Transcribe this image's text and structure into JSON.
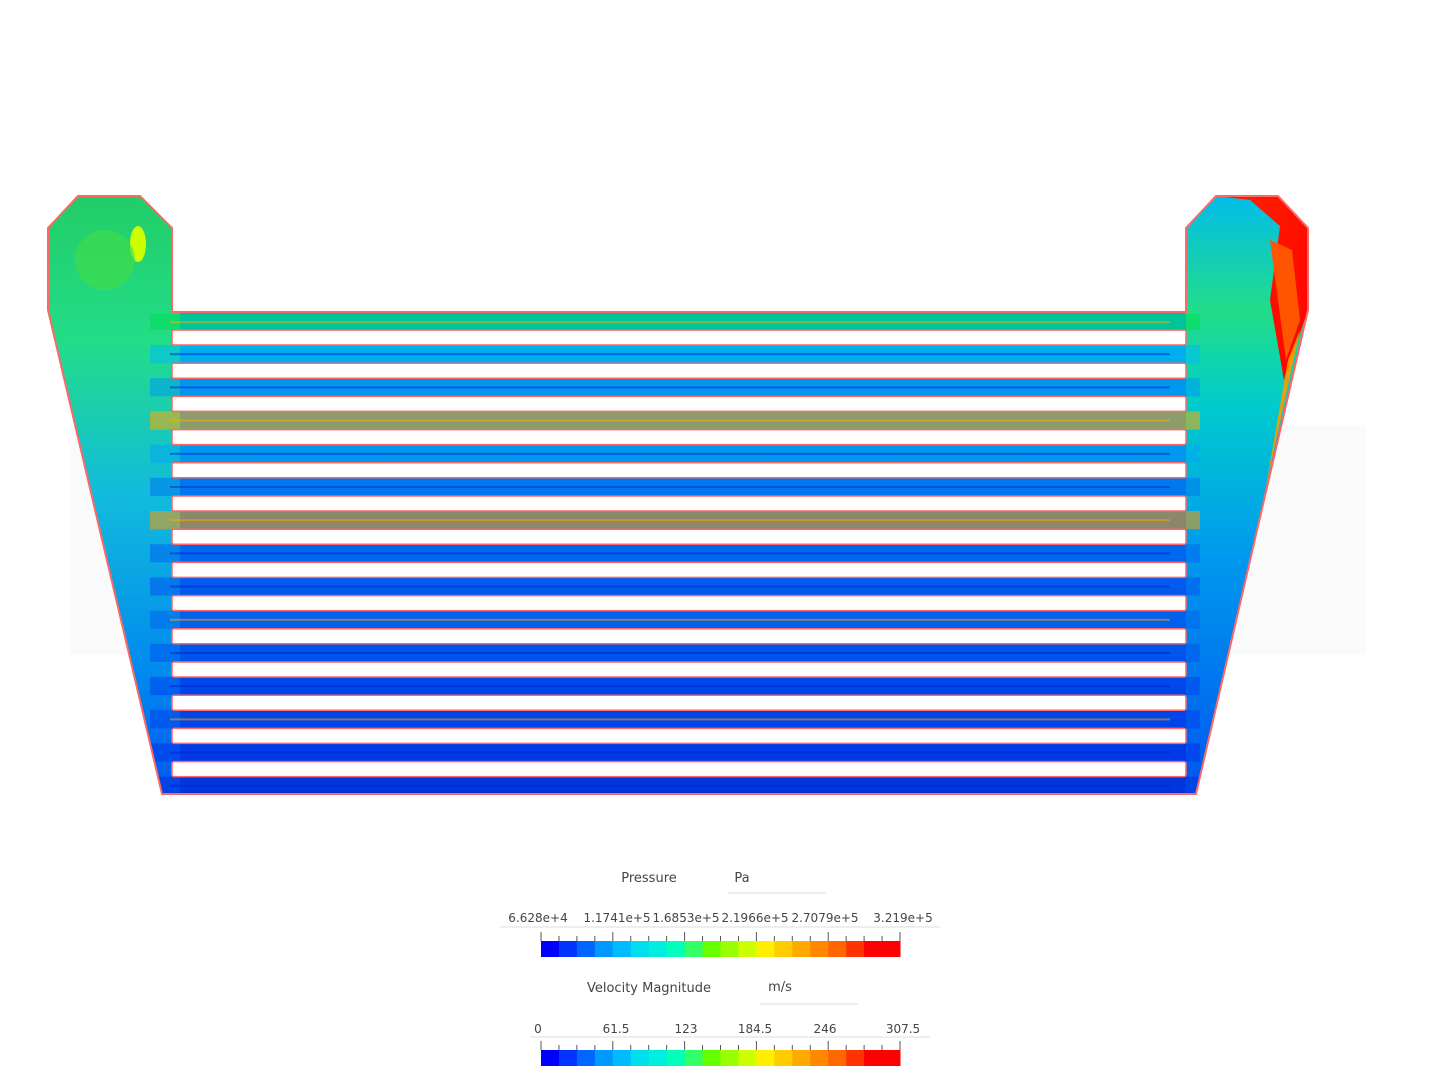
{
  "legends": [
    {
      "id": "pressure",
      "title": "Pressure",
      "unit": "Pa",
      "ticks": [
        "6.628e+4",
        "1.1741e+5",
        "1.6853e+5",
        "2.1966e+5",
        "2.7079e+5",
        "3.219e+5"
      ]
    },
    {
      "id": "velocity",
      "title": "Velocity Magnitude",
      "unit": "m/s",
      "ticks": [
        "0",
        "61.5",
        "123",
        "184.5",
        "246",
        "307.5"
      ]
    }
  ],
  "colormap": [
    "#0000ff",
    "#0033ff",
    "#0066ff",
    "#0099ff",
    "#00bbff",
    "#00ddee",
    "#00eedd",
    "#00ffbb",
    "#33ff66",
    "#66ff00",
    "#99ff00",
    "#ccff00",
    "#ffee00",
    "#ffcc00",
    "#ffaa00",
    "#ff8800",
    "#ff6600",
    "#ff3300",
    "#ff0000",
    "#ff0000"
  ],
  "colors": {
    "wall_outline": "#ff6666",
    "tube_fill": "#ffffff",
    "watermark": "#f2f2f2"
  },
  "tube_count": 14
}
